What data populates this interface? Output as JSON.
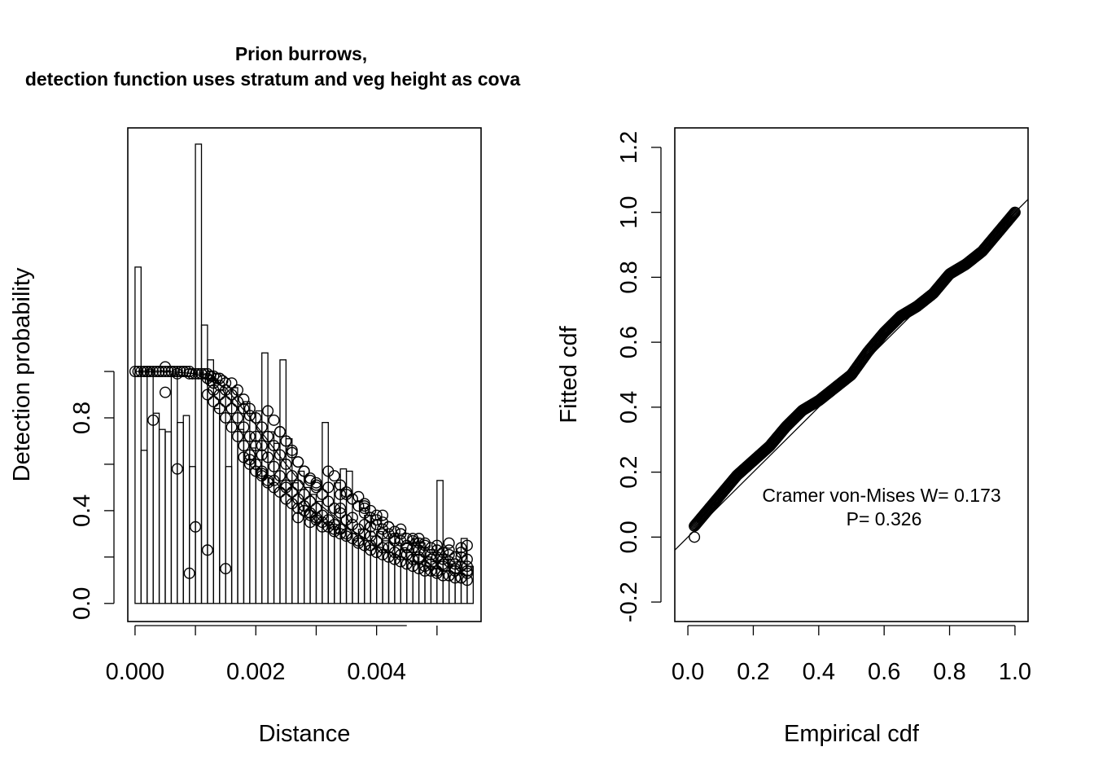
{
  "chart_data": [
    {
      "type": "bar+scatter",
      "title": "Prion burrows,",
      "subtitle": "detection function uses stratum and veg height as cova",
      "xlabel": "Distance",
      "ylabel": "Detection probability",
      "xlim": [
        -0.00012,
        0.00573
      ],
      "ylim": [
        -0.078,
        2.05
      ],
      "x_ticks": [
        "0.000",
        "0.002",
        "0.004"
      ],
      "x_tick_values": [
        0,
        0.002,
        0.004
      ],
      "y_ticks": [
        "0.0",
        "0.4",
        "0.8"
      ],
      "y_tick_values": [
        0,
        0.4,
        0.8
      ],
      "grid": false,
      "histogram": {
        "bin_width": 0.0001,
        "heights": [
          1.45,
          0.66,
          1.01,
          0.82,
          0.75,
          0.74,
          0.99,
          0.78,
          0.81,
          0.59,
          1.98,
          1.2,
          1.05,
          0.84,
          0.92,
          0.59,
          0.93,
          0.75,
          0.87,
          0.67,
          0.83,
          1.08,
          0.74,
          0.69,
          1.05,
          0.71,
          0.52,
          0.57,
          0.5,
          0.47,
          0.44,
          0.78,
          0.35,
          0.52,
          0.58,
          0.57,
          0.27,
          0.32,
          0.38,
          0.29,
          0.31,
          0.27,
          0.3,
          0.26,
          0.24,
          0.22,
          0.28,
          0.26,
          0.2,
          0.18,
          0.53,
          0.19,
          0.17,
          0.15,
          0.28,
          0.16
        ]
      },
      "fitted_curve": {
        "x": [
          0,
          0.0005,
          0.001,
          0.0015,
          0.002,
          0.0025,
          0.003,
          0.0035,
          0.004,
          0.0045,
          0.005,
          0.0055
        ],
        "y": [
          1.0,
          1.0,
          0.99,
          0.93,
          0.77,
          0.6,
          0.44,
          0.33,
          0.25,
          0.19,
          0.15,
          0.12
        ]
      },
      "points": [
        [
          0.0,
          1.0
        ],
        [
          5e-05,
          1.0
        ],
        [
          0.0001,
          1.0
        ],
        [
          0.00015,
          1.0
        ],
        [
          0.0002,
          1.0
        ],
        [
          0.00025,
          1.0
        ],
        [
          0.0003,
          1.0
        ],
        [
          0.00035,
          1.0
        ],
        [
          0.0004,
          1.0
        ],
        [
          0.00045,
          1.0
        ],
        [
          0.0005,
          1.0
        ],
        [
          0.00055,
          1.0
        ],
        [
          0.0006,
          1.0
        ],
        [
          0.00065,
          1.0
        ],
        [
          0.0007,
          1.0
        ],
        [
          0.00075,
          1.0
        ],
        [
          0.0008,
          1.0
        ],
        [
          0.00085,
          1.0
        ],
        [
          0.0009,
          1.0
        ],
        [
          0.00095,
          0.99
        ],
        [
          0.001,
          0.99
        ],
        [
          0.00105,
          0.99
        ],
        [
          0.0011,
          0.99
        ],
        [
          0.00115,
          0.99
        ],
        [
          0.0012,
          0.99
        ],
        [
          0.00125,
          0.98
        ],
        [
          0.0013,
          0.98
        ],
        [
          0.00135,
          0.97
        ],
        [
          0.0014,
          0.97
        ],
        [
          0.00145,
          0.96
        ],
        [
          0.0015,
          0.95
        ],
        [
          0.0012,
          0.97
        ],
        [
          0.00125,
          0.96
        ],
        [
          0.0013,
          0.95
        ],
        [
          0.0014,
          0.94
        ],
        [
          0.0015,
          0.92
        ],
        [
          0.0016,
          0.9
        ],
        [
          0.0017,
          0.87
        ],
        [
          0.0018,
          0.84
        ],
        [
          0.0019,
          0.81
        ],
        [
          0.0013,
          0.92
        ],
        [
          0.0014,
          0.9
        ],
        [
          0.0015,
          0.87
        ],
        [
          0.0016,
          0.84
        ],
        [
          0.0017,
          0.8
        ],
        [
          0.0018,
          0.76
        ],
        [
          0.0019,
          0.72
        ],
        [
          0.002,
          0.68
        ],
        [
          0.0021,
          0.64
        ],
        [
          0.0012,
          0.9
        ],
        [
          0.0013,
          0.87
        ],
        [
          0.0014,
          0.84
        ],
        [
          0.0015,
          0.8
        ],
        [
          0.0016,
          0.76
        ],
        [
          0.0017,
          0.72
        ],
        [
          0.0018,
          0.68
        ],
        [
          0.0019,
          0.64
        ],
        [
          0.002,
          0.6
        ],
        [
          0.0021,
          0.56
        ],
        [
          0.0022,
          0.53
        ],
        [
          0.0016,
          0.95
        ],
        [
          0.0017,
          0.92
        ],
        [
          0.0018,
          0.88
        ],
        [
          0.0019,
          0.84
        ],
        [
          0.002,
          0.8
        ],
        [
          0.0021,
          0.76
        ],
        [
          0.0022,
          0.72
        ],
        [
          0.0023,
          0.68
        ],
        [
          0.0024,
          0.64
        ],
        [
          0.0025,
          0.6
        ],
        [
          0.002,
          0.72
        ],
        [
          0.0021,
          0.68
        ],
        [
          0.0022,
          0.63
        ],
        [
          0.0023,
          0.59
        ],
        [
          0.0024,
          0.55
        ],
        [
          0.0025,
          0.51
        ],
        [
          0.0026,
          0.48
        ],
        [
          0.0027,
          0.45
        ],
        [
          0.0028,
          0.42
        ],
        [
          0.0029,
          0.39
        ],
        [
          0.003,
          0.37
        ],
        [
          0.0022,
          0.83
        ],
        [
          0.0023,
          0.79
        ],
        [
          0.0024,
          0.74
        ],
        [
          0.0025,
          0.7
        ],
        [
          0.0026,
          0.65
        ],
        [
          0.0027,
          0.61
        ],
        [
          0.0028,
          0.57
        ],
        [
          0.0029,
          0.53
        ],
        [
          0.003,
          0.5
        ],
        [
          0.0031,
          0.47
        ],
        [
          0.0032,
          0.44
        ],
        [
          0.0033,
          0.41
        ],
        [
          0.0034,
          0.39
        ],
        [
          0.0035,
          0.36
        ],
        [
          0.0036,
          0.34
        ],
        [
          0.0037,
          0.32
        ],
        [
          0.0038,
          0.3
        ],
        [
          0.0039,
          0.29
        ],
        [
          0.004,
          0.27
        ],
        [
          0.0026,
          0.55
        ],
        [
          0.0027,
          0.51
        ],
        [
          0.0028,
          0.47
        ],
        [
          0.0029,
          0.44
        ],
        [
          0.003,
          0.41
        ],
        [
          0.0031,
          0.38
        ],
        [
          0.0032,
          0.36
        ],
        [
          0.0033,
          0.34
        ],
        [
          0.0034,
          0.32
        ],
        [
          0.0035,
          0.3
        ],
        [
          0.0036,
          0.28
        ],
        [
          0.0037,
          0.26
        ],
        [
          0.0038,
          0.25
        ],
        [
          0.0039,
          0.23
        ],
        [
          0.004,
          0.22
        ],
        [
          0.0041,
          0.21
        ],
        [
          0.0042,
          0.2
        ],
        [
          0.0043,
          0.19
        ],
        [
          0.0044,
          0.18
        ],
        [
          0.0045,
          0.17
        ],
        [
          0.0046,
          0.16
        ],
        [
          0.0047,
          0.15
        ],
        [
          0.0048,
          0.14
        ],
        [
          0.0049,
          0.14
        ],
        [
          0.005,
          0.13
        ],
        [
          0.0051,
          0.12
        ],
        [
          0.0052,
          0.12
        ],
        [
          0.0053,
          0.11
        ],
        [
          0.0054,
          0.11
        ],
        [
          0.0055,
          0.1
        ],
        [
          0.0033,
          0.55
        ],
        [
          0.0034,
          0.51
        ],
        [
          0.0035,
          0.48
        ],
        [
          0.0036,
          0.45
        ],
        [
          0.0037,
          0.42
        ],
        [
          0.0038,
          0.39
        ],
        [
          0.0039,
          0.37
        ],
        [
          0.004,
          0.34
        ],
        [
          0.0041,
          0.32
        ],
        [
          0.0042,
          0.3
        ],
        [
          0.0043,
          0.28
        ],
        [
          0.0044,
          0.27
        ],
        [
          0.0045,
          0.25
        ],
        [
          0.0046,
          0.24
        ],
        [
          0.0047,
          0.23
        ],
        [
          0.0048,
          0.22
        ],
        [
          0.0049,
          0.21
        ],
        [
          0.005,
          0.2
        ],
        [
          0.0051,
          0.19
        ],
        [
          0.0052,
          0.18
        ],
        [
          0.0053,
          0.17
        ],
        [
          0.0054,
          0.16
        ],
        [
          0.0055,
          0.16
        ],
        [
          0.0037,
          0.46
        ],
        [
          0.0038,
          0.43
        ],
        [
          0.0039,
          0.4
        ],
        [
          0.004,
          0.38
        ],
        [
          0.0041,
          0.35
        ],
        [
          0.0042,
          0.33
        ],
        [
          0.0043,
          0.31
        ],
        [
          0.0044,
          0.3
        ],
        [
          0.0045,
          0.28
        ],
        [
          0.0046,
          0.27
        ],
        [
          0.0047,
          0.26
        ],
        [
          0.0048,
          0.25
        ],
        [
          0.0049,
          0.24
        ],
        [
          0.005,
          0.23
        ],
        [
          0.0051,
          0.22
        ],
        [
          0.0052,
          0.21
        ],
        [
          0.0053,
          0.2
        ],
        [
          0.0054,
          0.2
        ],
        [
          0.0055,
          0.19
        ],
        [
          0.0024,
          0.74
        ],
        [
          0.0025,
          0.7
        ],
        [
          0.0026,
          0.66
        ],
        [
          0.0027,
          0.61
        ],
        [
          0.0028,
          0.57
        ],
        [
          0.0029,
          0.54
        ],
        [
          0.003,
          0.51
        ],
        [
          0.0018,
          0.63
        ],
        [
          0.0019,
          0.6
        ],
        [
          0.002,
          0.57
        ],
        [
          0.0021,
          0.55
        ],
        [
          0.0022,
          0.52
        ],
        [
          0.0023,
          0.5
        ],
        [
          0.0024,
          0.48
        ],
        [
          0.0025,
          0.45
        ],
        [
          0.0026,
          0.43
        ],
        [
          0.0027,
          0.41
        ],
        [
          0.0028,
          0.4
        ],
        [
          0.0029,
          0.38
        ],
        [
          0.003,
          0.36
        ],
        [
          0.0031,
          0.35
        ],
        [
          0.0032,
          0.33
        ],
        [
          0.0033,
          0.32
        ],
        [
          0.0034,
          0.3
        ],
        [
          0.0028,
          0.57
        ],
        [
          0.003,
          0.52
        ],
        [
          0.0032,
          0.5
        ],
        [
          0.0034,
          0.47
        ],
        [
          0.0036,
          0.45
        ],
        [
          0.0038,
          0.41
        ],
        [
          0.004,
          0.36
        ],
        [
          0.0042,
          0.33
        ],
        [
          0.0044,
          0.3
        ],
        [
          0.0046,
          0.28
        ],
        [
          0.0048,
          0.26
        ],
        [
          0.005,
          0.25
        ],
        [
          0.0052,
          0.23
        ],
        [
          0.0054,
          0.22
        ],
        [
          0.0047,
          0.19
        ],
        [
          0.0049,
          0.17
        ],
        [
          0.0051,
          0.16
        ],
        [
          0.0053,
          0.14
        ],
        [
          0.0055,
          0.13
        ],
        [
          0.0042,
          0.24
        ],
        [
          0.0044,
          0.21
        ],
        [
          0.0046,
          0.19
        ],
        [
          0.0048,
          0.16
        ],
        [
          0.005,
          0.14
        ],
        [
          0.0052,
          0.12
        ],
        [
          0.0054,
          0.11
        ],
        [
          0.0039,
          0.33
        ],
        [
          0.0041,
          0.3
        ],
        [
          0.0043,
          0.27
        ],
        [
          0.0045,
          0.24
        ],
        [
          0.0034,
          0.41
        ],
        [
          0.0036,
          0.37
        ],
        [
          0.0038,
          0.34
        ],
        [
          0.0002,
          1.0
        ],
        [
          0.0004,
          1.0
        ],
        [
          0.0006,
          1.0
        ],
        [
          0.0008,
          1.0
        ],
        [
          0.0003,
          0.79
        ],
        [
          0.0005,
          0.91
        ],
        [
          0.0007,
          0.58
        ],
        [
          0.001,
          0.33
        ],
        [
          0.0009,
          0.13
        ],
        [
          0.0012,
          0.23
        ],
        [
          0.0015,
          0.15
        ],
        [
          0.0007,
          0.99
        ],
        [
          0.0009,
          0.99
        ],
        [
          0.0011,
          0.99
        ],
        [
          0.0005,
          1.02
        ],
        [
          0.0019,
          0.62
        ],
        [
          0.0021,
          0.57
        ],
        [
          0.0023,
          0.53
        ],
        [
          0.0025,
          0.5
        ],
        [
          0.0027,
          0.37
        ],
        [
          0.0029,
          0.35
        ],
        [
          0.0031,
          0.33
        ],
        [
          0.0033,
          0.31
        ],
        [
          0.0035,
          0.29
        ],
        [
          0.0037,
          0.27
        ],
        [
          0.0039,
          0.25
        ],
        [
          0.0041,
          0.24
        ],
        [
          0.0043,
          0.22
        ],
        [
          0.0045,
          0.21
        ],
        [
          0.0047,
          0.2
        ],
        [
          0.0049,
          0.19
        ],
        [
          0.0051,
          0.17
        ],
        [
          0.0053,
          0.15
        ],
        [
          0.0055,
          0.14
        ],
        [
          0.0032,
          0.57
        ],
        [
          0.0035,
          0.47
        ],
        [
          0.0038,
          0.42
        ],
        [
          0.0041,
          0.38
        ],
        [
          0.0044,
          0.32
        ],
        [
          0.0047,
          0.28
        ],
        [
          0.0052,
          0.26
        ],
        [
          0.0054,
          0.24
        ],
        [
          0.0055,
          0.25
        ]
      ]
    },
    {
      "type": "scatter",
      "title": "",
      "xlabel": "Empirical cdf",
      "ylabel": "Fitted cdf",
      "xlim": [
        -0.04,
        1.04
      ],
      "ylim": [
        -0.26,
        1.26
      ],
      "x_ticks": [
        "0.0",
        "0.2",
        "0.4",
        "0.6",
        "0.8",
        "1.0"
      ],
      "x_tick_values": [
        0,
        0.2,
        0.4,
        0.6,
        0.8,
        1.0
      ],
      "y_ticks": [
        "-0.2",
        "0.0",
        "0.2",
        "0.4",
        "0.6",
        "0.8",
        "1.0",
        "1.2"
      ],
      "y_tick_values": [
        -0.2,
        0,
        0.2,
        0.4,
        0.6,
        0.8,
        1.0,
        1.2
      ],
      "reference_line": {
        "intercept": 0,
        "slope": 1
      },
      "annotation": [
        "Cramer von-Mises W= 0.173",
        "P= 0.326"
      ],
      "grid": false,
      "wiggle": [
        [
          0,
          0.01
        ],
        [
          0.05,
          0.02
        ],
        [
          0.15,
          0.04
        ],
        [
          0.25,
          0.03
        ],
        [
          0.3,
          0.04
        ],
        [
          0.35,
          0.04
        ],
        [
          0.4,
          0.02
        ],
        [
          0.45,
          0.01
        ],
        [
          0.5,
          0.0
        ],
        [
          0.55,
          0.02
        ],
        [
          0.6,
          0.03
        ],
        [
          0.65,
          0.03
        ],
        [
          0.7,
          0.01
        ],
        [
          0.75,
          0.0
        ],
        [
          0.8,
          0.01
        ],
        [
          0.85,
          -0.01
        ],
        [
          0.9,
          -0.02
        ],
        [
          0.95,
          -0.01
        ],
        [
          1.0,
          0.0
        ]
      ],
      "n_points": 410
    }
  ]
}
